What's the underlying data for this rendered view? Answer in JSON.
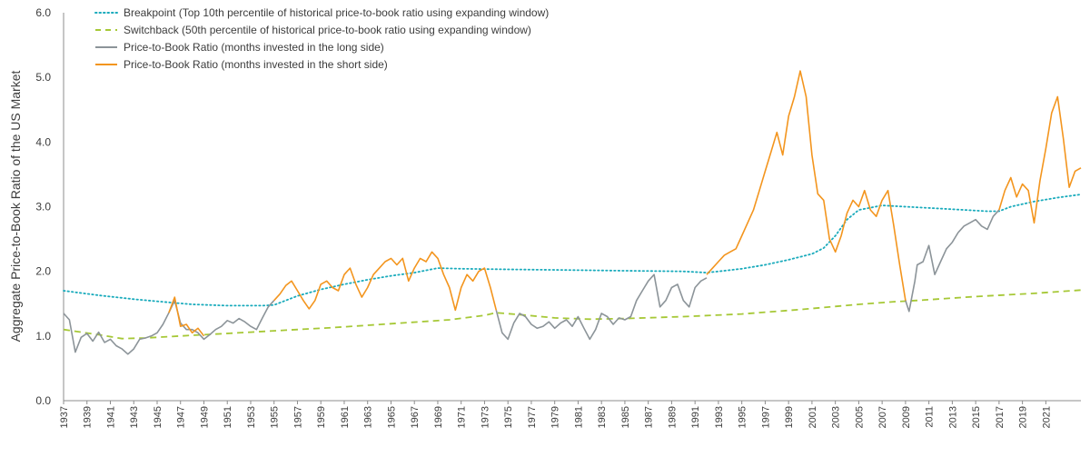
{
  "chart_data": {
    "type": "line",
    "title": "",
    "xlabel": "",
    "ylabel": "Aggregate Price-to-Book Ratio of the US Market",
    "xlim": [
      1937,
      2024
    ],
    "ylim": [
      0.0,
      6.0
    ],
    "y_ticks": [
      "0.0",
      "1.0",
      "2.0",
      "3.0",
      "4.0",
      "5.0",
      "6.0"
    ],
    "x_ticks": [
      "1937",
      "1939",
      "1941",
      "1943",
      "1945",
      "1947",
      "1949",
      "1951",
      "1953",
      "1955",
      "1957",
      "1959",
      "1961",
      "1963",
      "1965",
      "1967",
      "1969",
      "1971",
      "1973",
      "1975",
      "1977",
      "1979",
      "1981",
      "1983",
      "1985",
      "1987",
      "1989",
      "1991",
      "1993",
      "1995",
      "1997",
      "1999",
      "2001",
      "2003",
      "2005",
      "2007",
      "2009",
      "2011",
      "2013",
      "2015",
      "2017",
      "2019",
      "2021"
    ],
    "grid": false,
    "legend_position": "top-left",
    "series": [
      {
        "name": "Breakpoint (Top 10th percentile of historical price-to-book ratio using expanding window)",
        "style": "dotted",
        "color": "#1aabbc",
        "points": [
          [
            1937,
            1.7
          ],
          [
            1940,
            1.63
          ],
          [
            1943,
            1.57
          ],
          [
            1946,
            1.52
          ],
          [
            1948,
            1.49
          ],
          [
            1951,
            1.47
          ],
          [
            1954,
            1.47
          ],
          [
            1955,
            1.48
          ],
          [
            1957,
            1.62
          ],
          [
            1959,
            1.72
          ],
          [
            1961,
            1.8
          ],
          [
            1963,
            1.87
          ],
          [
            1965,
            1.93
          ],
          [
            1967,
            1.98
          ],
          [
            1969,
            2.05
          ],
          [
            1971,
            2.04
          ],
          [
            1975,
            2.03
          ],
          [
            1980,
            2.02
          ],
          [
            1985,
            2.01
          ],
          [
            1990,
            2.0
          ],
          [
            1992,
            1.98
          ],
          [
            1993,
            2.0
          ],
          [
            1995,
            2.04
          ],
          [
            1997,
            2.1
          ],
          [
            1999,
            2.18
          ],
          [
            2001,
            2.27
          ],
          [
            2002,
            2.36
          ],
          [
            2003,
            2.55
          ],
          [
            2004,
            2.8
          ],
          [
            2005,
            2.95
          ],
          [
            2007,
            3.02
          ],
          [
            2010,
            2.99
          ],
          [
            2013,
            2.96
          ],
          [
            2016,
            2.93
          ],
          [
            2017,
            2.93
          ],
          [
            2018,
            3.0
          ],
          [
            2020,
            3.08
          ],
          [
            2022,
            3.14
          ],
          [
            2024,
            3.19
          ]
        ]
      },
      {
        "name": "Switchback (50th percentile of historical price-to-book ratio using expanding window)",
        "style": "dashed",
        "color": "#a6c836",
        "points": [
          [
            1937,
            1.1
          ],
          [
            1940,
            1.02
          ],
          [
            1942,
            0.96
          ],
          [
            1944,
            0.97
          ],
          [
            1947,
            1.0
          ],
          [
            1950,
            1.03
          ],
          [
            1953,
            1.06
          ],
          [
            1956,
            1.09
          ],
          [
            1960,
            1.13
          ],
          [
            1965,
            1.19
          ],
          [
            1970,
            1.25
          ],
          [
            1973,
            1.32
          ],
          [
            1974,
            1.36
          ],
          [
            1976,
            1.33
          ],
          [
            1979,
            1.28
          ],
          [
            1982,
            1.26
          ],
          [
            1985,
            1.27
          ],
          [
            1990,
            1.3
          ],
          [
            1995,
            1.34
          ],
          [
            2000,
            1.41
          ],
          [
            2005,
            1.49
          ],
          [
            2008,
            1.53
          ],
          [
            2010,
            1.55
          ],
          [
            2015,
            1.61
          ],
          [
            2020,
            1.66
          ],
          [
            2024,
            1.71
          ]
        ]
      },
      {
        "name": "Price-to-Book Ratio (months invested in the long side)",
        "style": "solid",
        "color": "#8c9499",
        "points": [
          [
            1937,
            1.35
          ],
          [
            1937.5,
            1.25
          ],
          [
            1938,
            0.75
          ],
          [
            1938.5,
            0.98
          ],
          [
            1939,
            1.04
          ],
          [
            1939.5,
            0.92
          ],
          [
            1940,
            1.06
          ],
          [
            1940.5,
            0.9
          ],
          [
            1941,
            0.95
          ],
          [
            1941.5,
            0.85
          ],
          [
            1942,
            0.8
          ],
          [
            1942.5,
            0.72
          ],
          [
            1943,
            0.8
          ],
          [
            1943.5,
            0.95
          ],
          [
            1944,
            0.97
          ],
          [
            1944.5,
            1.0
          ],
          [
            1945,
            1.05
          ],
          [
            1945.5,
            1.18
          ],
          [
            1946,
            1.36
          ],
          [
            1946.5,
            1.55
          ],
          [
            1947,
            1.2
          ],
          [
            1947.5,
            1.1
          ],
          [
            1948,
            1.1
          ],
          [
            1948.5,
            1.05
          ],
          [
            1949,
            0.95
          ],
          [
            1949.5,
            1.02
          ],
          [
            1950,
            1.1
          ],
          [
            1950.5,
            1.15
          ],
          [
            1951,
            1.24
          ],
          [
            1951.5,
            1.2
          ],
          [
            1952,
            1.27
          ],
          [
            1952.5,
            1.22
          ],
          [
            1953,
            1.15
          ],
          [
            1953.5,
            1.1
          ],
          [
            1954,
            1.28
          ],
          [
            1954.5,
            1.45
          ],
          [
            1955,
            1.55
          ],
          [
            null,
            null
          ],
          [
            1974,
            1.4
          ],
          [
            1974.5,
            1.05
          ],
          [
            1975,
            0.95
          ],
          [
            1975.5,
            1.2
          ],
          [
            1976,
            1.35
          ],
          [
            1976.5,
            1.3
          ],
          [
            1977,
            1.18
          ],
          [
            1977.5,
            1.12
          ],
          [
            1978,
            1.15
          ],
          [
            1978.5,
            1.22
          ],
          [
            1979,
            1.12
          ],
          [
            1979.5,
            1.2
          ],
          [
            1980,
            1.25
          ],
          [
            1980.5,
            1.15
          ],
          [
            1981,
            1.3
          ],
          [
            1981.5,
            1.12
          ],
          [
            1982,
            0.95
          ],
          [
            1982.5,
            1.1
          ],
          [
            1983,
            1.35
          ],
          [
            1983.5,
            1.3
          ],
          [
            1984,
            1.18
          ],
          [
            1984.5,
            1.28
          ],
          [
            1985,
            1.25
          ],
          [
            1985.5,
            1.3
          ],
          [
            1986,
            1.55
          ],
          [
            1986.5,
            1.7
          ],
          [
            1987,
            1.85
          ],
          [
            1987.5,
            1.95
          ],
          [
            1988,
            1.45
          ],
          [
            1988.5,
            1.55
          ],
          [
            1989,
            1.75
          ],
          [
            1989.5,
            1.8
          ],
          [
            1990,
            1.55
          ],
          [
            1990.5,
            1.45
          ],
          [
            1991,
            1.75
          ],
          [
            1991.5,
            1.85
          ],
          [
            1992,
            1.9
          ],
          [
            null,
            null
          ],
          [
            2009,
            1.55
          ],
          [
            2009.3,
            1.38
          ],
          [
            2009.8,
            1.85
          ],
          [
            2010,
            2.1
          ],
          [
            2010.5,
            2.15
          ],
          [
            2011,
            2.4
          ],
          [
            2011.5,
            1.95
          ],
          [
            2012,
            2.15
          ],
          [
            2012.5,
            2.35
          ],
          [
            2013,
            2.45
          ],
          [
            2013.5,
            2.6
          ],
          [
            2014,
            2.7
          ],
          [
            2014.5,
            2.75
          ],
          [
            2015,
            2.8
          ],
          [
            2015.5,
            2.7
          ],
          [
            2016,
            2.65
          ],
          [
            2016.5,
            2.85
          ],
          [
            2017,
            2.95
          ]
        ]
      },
      {
        "name": "Price-to-Book Ratio (months invested in the short side)",
        "style": "solid",
        "color": "#f3951e",
        "points": [
          [
            1946,
            1.36
          ],
          [
            1946.5,
            1.6
          ],
          [
            1947,
            1.15
          ],
          [
            1947.5,
            1.18
          ],
          [
            1948,
            1.05
          ],
          [
            1948.5,
            1.12
          ],
          [
            1949,
            1.0
          ],
          [
            null,
            null
          ],
          [
            1955,
            1.55
          ],
          [
            1955.5,
            1.65
          ],
          [
            1956,
            1.78
          ],
          [
            1956.5,
            1.85
          ],
          [
            1957,
            1.7
          ],
          [
            1957.5,
            1.55
          ],
          [
            1958,
            1.42
          ],
          [
            1958.5,
            1.55
          ],
          [
            1959,
            1.8
          ],
          [
            1959.5,
            1.85
          ],
          [
            1960,
            1.75
          ],
          [
            1960.5,
            1.7
          ],
          [
            1961,
            1.95
          ],
          [
            1961.5,
            2.05
          ],
          [
            1962,
            1.8
          ],
          [
            1962.5,
            1.6
          ],
          [
            1963,
            1.75
          ],
          [
            1963.5,
            1.95
          ],
          [
            1964,
            2.05
          ],
          [
            1964.5,
            2.15
          ],
          [
            1965,
            2.2
          ],
          [
            1965.5,
            2.1
          ],
          [
            1966,
            2.2
          ],
          [
            1966.5,
            1.85
          ],
          [
            1967,
            2.05
          ],
          [
            1967.5,
            2.2
          ],
          [
            1968,
            2.15
          ],
          [
            1968.5,
            2.3
          ],
          [
            1969,
            2.2
          ],
          [
            1969.5,
            1.95
          ],
          [
            1970,
            1.75
          ],
          [
            1970.5,
            1.4
          ],
          [
            1971,
            1.75
          ],
          [
            1971.5,
            1.95
          ],
          [
            1972,
            1.85
          ],
          [
            1972.5,
            2.0
          ],
          [
            1973,
            2.05
          ],
          [
            1973.5,
            1.75
          ],
          [
            1974,
            1.4
          ],
          [
            null,
            null
          ],
          [
            1992,
            1.95
          ],
          [
            1992.5,
            2.05
          ],
          [
            1993,
            2.15
          ],
          [
            1993.5,
            2.25
          ],
          [
            1994,
            2.3
          ],
          [
            1994.5,
            2.35
          ],
          [
            1995,
            2.55
          ],
          [
            1995.5,
            2.75
          ],
          [
            1996,
            2.95
          ],
          [
            1996.5,
            3.25
          ],
          [
            1997,
            3.55
          ],
          [
            1997.5,
            3.85
          ],
          [
            1998,
            4.15
          ],
          [
            1998.5,
            3.8
          ],
          [
            1999,
            4.4
          ],
          [
            1999.5,
            4.7
          ],
          [
            2000,
            5.1
          ],
          [
            2000.5,
            4.7
          ],
          [
            2001,
            3.8
          ],
          [
            2001.5,
            3.2
          ],
          [
            2002,
            3.1
          ],
          [
            2002.5,
            2.5
          ],
          [
            2003,
            2.3
          ],
          [
            2003.5,
            2.55
          ],
          [
            2004,
            2.9
          ],
          [
            2004.5,
            3.1
          ],
          [
            2005,
            3.0
          ],
          [
            2005.5,
            3.25
          ],
          [
            2006,
            2.95
          ],
          [
            2006.5,
            2.85
          ],
          [
            2007,
            3.1
          ],
          [
            2007.5,
            3.25
          ],
          [
            2008,
            2.7
          ],
          [
            2008.5,
            2.1
          ],
          [
            2009,
            1.55
          ],
          [
            null,
            null
          ],
          [
            2017,
            2.95
          ],
          [
            2017.5,
            3.25
          ],
          [
            2018,
            3.45
          ],
          [
            2018.5,
            3.15
          ],
          [
            2019,
            3.35
          ],
          [
            2019.5,
            3.25
          ],
          [
            2020,
            2.75
          ],
          [
            2020.5,
            3.4
          ],
          [
            2021,
            3.9
          ],
          [
            2021.5,
            4.45
          ],
          [
            2022,
            4.7
          ],
          [
            2022.5,
            4.05
          ],
          [
            2023,
            3.3
          ],
          [
            2023.5,
            3.55
          ],
          [
            2024,
            3.6
          ]
        ]
      }
    ]
  }
}
